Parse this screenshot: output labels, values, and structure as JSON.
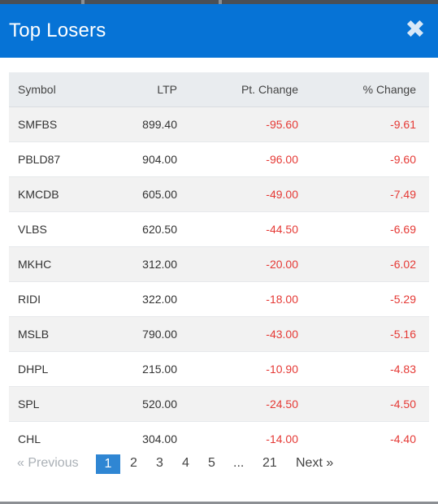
{
  "modal": {
    "title": "Top Losers",
    "close_icon": "close-icon",
    "close_glyph": "✖"
  },
  "table": {
    "columns": [
      "Symbol",
      "LTP",
      "Pt. Change",
      "% Change"
    ],
    "rows": [
      [
        "SMFBS",
        "899.40",
        "-95.60",
        "-9.61"
      ],
      [
        "PBLD87",
        "904.00",
        "-96.00",
        "-9.60"
      ],
      [
        "KMCDB",
        "605.00",
        "-49.00",
        "-7.49"
      ],
      [
        "VLBS",
        "620.50",
        "-44.50",
        "-6.69"
      ],
      [
        "MKHC",
        "312.00",
        "-20.00",
        "-6.02"
      ],
      [
        "RIDI",
        "322.00",
        "-18.00",
        "-5.29"
      ],
      [
        "MSLB",
        "790.00",
        "-43.00",
        "-5.16"
      ],
      [
        "DHPL",
        "215.00",
        "-10.90",
        "-4.83"
      ],
      [
        "SPL",
        "520.00",
        "-24.50",
        "-4.50"
      ],
      [
        "CHL",
        "304.00",
        "-14.00",
        "-4.40"
      ]
    ]
  },
  "pagination": {
    "previous_label": "« Previous",
    "pages": [
      "1",
      "2",
      "3",
      "4",
      "5",
      "...",
      "21"
    ],
    "active_page": "1",
    "next_label": "Next »"
  },
  "colors": {
    "header": "#0673d6",
    "negative": "#e53935",
    "active_page": "#2f86d3"
  }
}
